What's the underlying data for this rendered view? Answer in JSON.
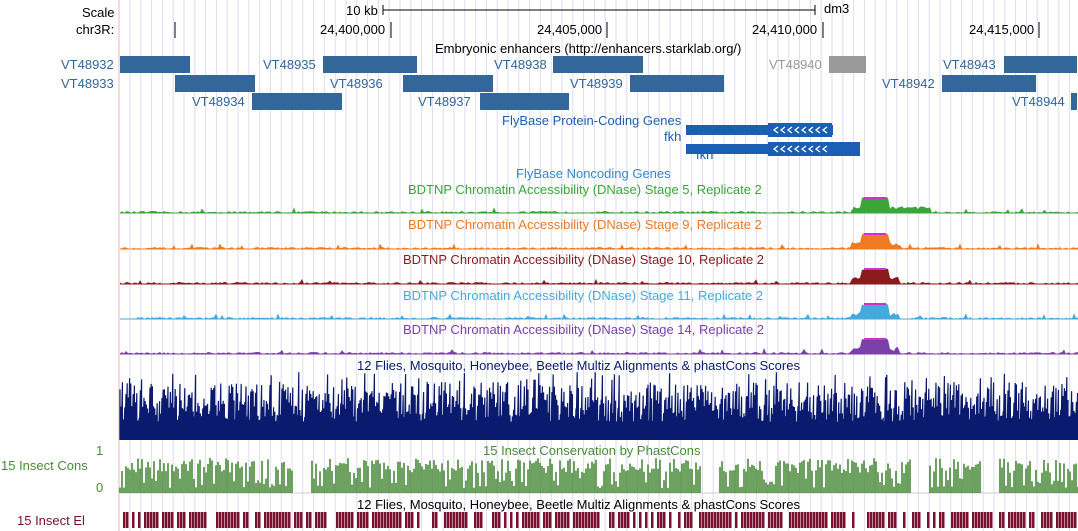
{
  "browser": {
    "scale_label": "Scale",
    "scale_bar_label": "10 kb",
    "assembly": "dm3",
    "chrom_label": "chr3R:",
    "positions": [
      "24,400,000",
      "24,405,000",
      "24,410,000",
      "24,415,000"
    ]
  },
  "enhancers": {
    "title": "Embryonic enhancers (http://enhancers.starklab.org/)",
    "items": [
      {
        "name": "VT48932",
        "color": "#336699"
      },
      {
        "name": "VT48933",
        "color": "#336699"
      },
      {
        "name": "VT48934",
        "color": "#336699"
      },
      {
        "name": "VT48935",
        "color": "#336699"
      },
      {
        "name": "VT48936",
        "color": "#336699"
      },
      {
        "name": "VT48937",
        "color": "#336699"
      },
      {
        "name": "VT48938",
        "color": "#336699"
      },
      {
        "name": "VT48939",
        "color": "#336699"
      },
      {
        "name": "VT48940",
        "color": "#999999"
      },
      {
        "name": "VT48942",
        "color": "#336699"
      },
      {
        "name": "VT48943",
        "color": "#336699"
      },
      {
        "name": "VT48944",
        "color": "#336699"
      }
    ]
  },
  "genes": {
    "title": "FlyBase Protein-Coding Genes",
    "items": [
      {
        "name": "fkh"
      },
      {
        "name": "fkh"
      }
    ],
    "color": "#1a5fb4"
  },
  "noncoding": {
    "title": "FlyBase Noncoding Genes",
    "color": "#3a86c8"
  },
  "dnase": [
    {
      "title": "BDTNP Chromatin Accessibility (DNase) Stage 5, Replicate 2",
      "color": "#3aa63a",
      "text_color": "#3aa63a"
    },
    {
      "title": "BDTNP Chromatin Accessibility (DNase) Stage 9, Replicate 2",
      "color": "#ee7a22",
      "text_color": "#ee7a22"
    },
    {
      "title": "BDTNP Chromatin Accessibility (DNase) Stage 10, Replicate 2",
      "color": "#8b1a1a",
      "text_color": "#8b1a1a"
    },
    {
      "title": "BDTNP Chromatin Accessibility (DNase) Stage 11, Replicate 2",
      "color": "#44aadd",
      "text_color": "#44aadd"
    },
    {
      "title": "BDTNP Chromatin Accessibility (DNase) Stage 14, Replicate 2",
      "color": "#7a3fa8",
      "text_color": "#7a3fa8"
    }
  ],
  "multiz": {
    "title": "12 Flies, Mosquito, Honeybee, Beetle Multiz Alignments & phastCons Scores",
    "color": "#0a1a6e"
  },
  "conservation": {
    "title": "15 Insect Conservation by PhastCons",
    "side_label": "15 Insect Cons",
    "max_label": "1",
    "min_label": "0",
    "color": "#4a8a3a"
  },
  "elements": {
    "title": "12 Flies, Mosquito, Honeybee, Beetle Multiz Alignments & phastCons Scores",
    "side_label": "15 Insect El",
    "color": "#7a1030"
  }
}
